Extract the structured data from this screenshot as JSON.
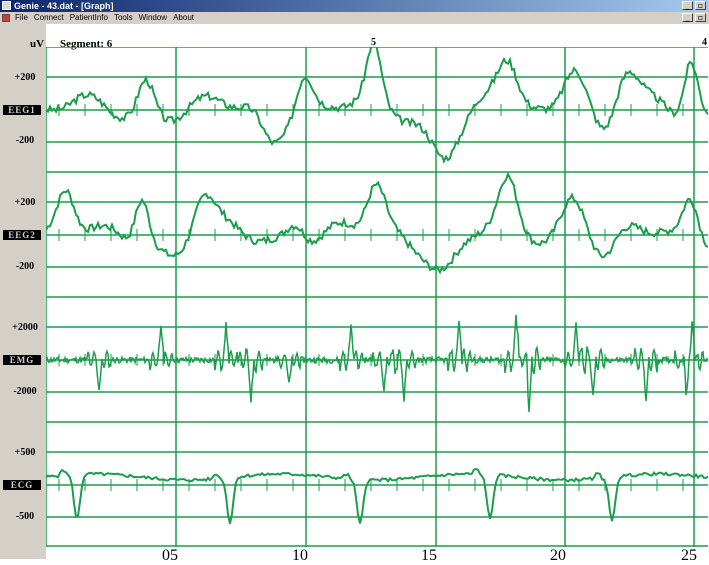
{
  "window": {
    "title": "Genie - 43.dat - [Graph]"
  },
  "menu": {
    "items": [
      "File",
      "Connect",
      "PatientInfo",
      "Tools",
      "Window",
      "About"
    ]
  },
  "header": {
    "unit": "uV",
    "segment": "Segment: 6",
    "marker_a": "5",
    "marker_b": "4"
  },
  "channels": [
    {
      "name": "EEG1",
      "upper": "+200",
      "lower": "-200"
    },
    {
      "name": "EEG2",
      "upper": "+200",
      "lower": "-200"
    },
    {
      "name": "EMG",
      "upper": "+2000",
      "lower": "-2000"
    },
    {
      "name": "ECG",
      "upper": "+500",
      "lower": "-500"
    }
  ],
  "x_ticks": [
    "05",
    "10",
    "15",
    "20",
    "25"
  ],
  "colors": {
    "trace": "#1a9e4b",
    "grid": "#1a9e4b",
    "panel": "#d4d0c8",
    "title_bar": "#0a246a"
  }
}
